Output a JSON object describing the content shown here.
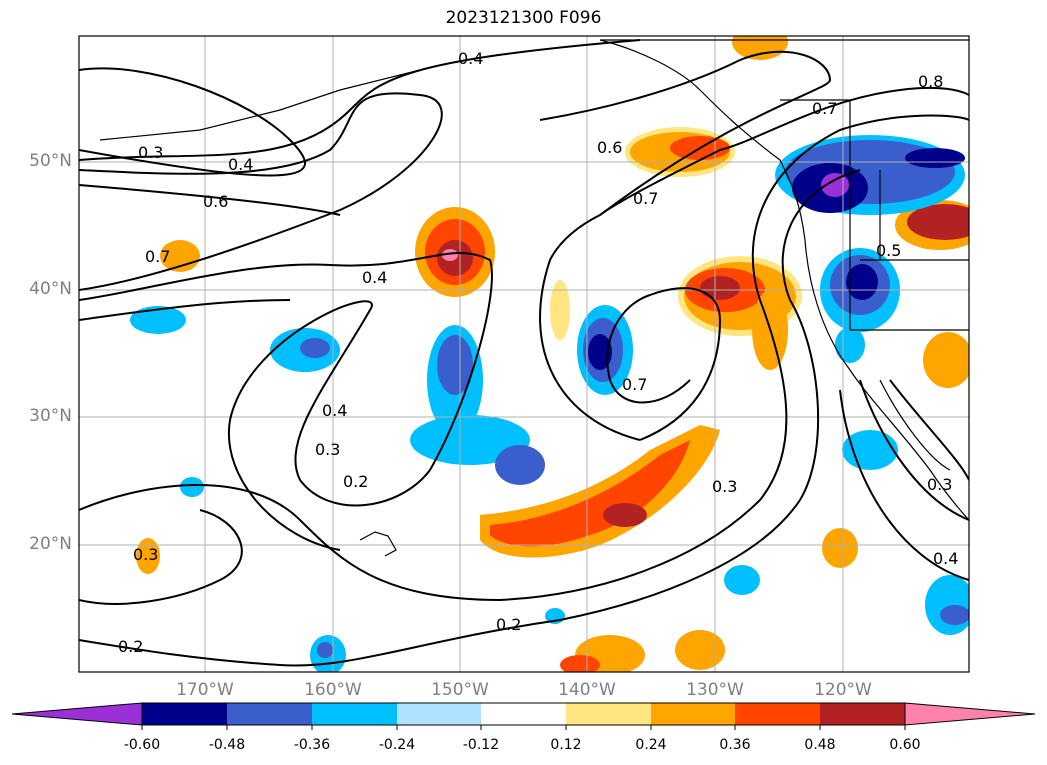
{
  "title": "2023121300 F096",
  "lat_ticks": [
    "50°N",
    "40°N",
    "30°N",
    "20°N"
  ],
  "lon_ticks": [
    "170°W",
    "160°W",
    "150°W",
    "140°W",
    "130°W",
    "120°W"
  ],
  "contour_labels": [
    "0.4",
    "0.8",
    "0.3",
    "0.4",
    "0.6",
    "0.7",
    "0.6",
    "0.7",
    "0.5",
    "0.7",
    "0.4",
    "0.4",
    "0.3",
    "0.2",
    "0.7",
    "0.3",
    "0.3",
    "0.4",
    "0.2",
    "0.2",
    "0.3"
  ],
  "colorbar": {
    "ticks": [
      "-0.60",
      "-0.48",
      "-0.36",
      "-0.24",
      "-0.12",
      "0.12",
      "0.24",
      "0.36",
      "0.48",
      "0.60"
    ],
    "colors": [
      "#9b30d9",
      "#00008b",
      "#3a5fcd",
      "#00bfff",
      "#b0e2ff",
      "#ffffff",
      "#ffe680",
      "#ffa500",
      "#ff4500",
      "#b22222",
      "#ff82ab"
    ]
  }
}
